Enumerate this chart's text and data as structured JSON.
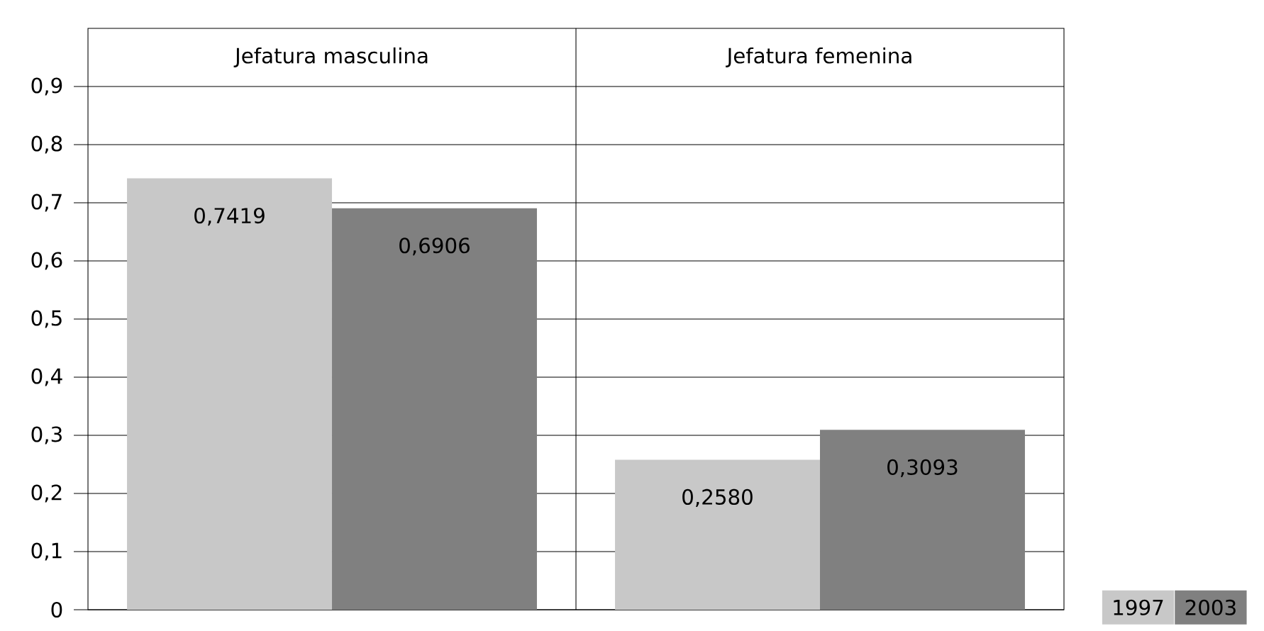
{
  "chart_data": {
    "type": "bar",
    "categories": [
      "Jefatura masculina",
      "Jefatura femenina"
    ],
    "series": [
      {
        "name": "1997",
        "color": "#c8c8c8",
        "values": [
          0.7419,
          0.258
        ],
        "value_labels": [
          "0,7419",
          "0,2580"
        ]
      },
      {
        "name": "2003",
        "color": "#808080",
        "values": [
          0.6906,
          0.3093
        ],
        "value_labels": [
          "0,6906",
          "0,3093"
        ]
      }
    ],
    "ylim": [
      0,
      1
    ],
    "yticks": [
      {
        "value": 0,
        "label": "0"
      },
      {
        "value": 0.1,
        "label": "0,1"
      },
      {
        "value": 0.2,
        "label": "0,2"
      },
      {
        "value": 0.3,
        "label": "0,3"
      },
      {
        "value": 0.4,
        "label": "0,4"
      },
      {
        "value": 0.5,
        "label": "0,5"
      },
      {
        "value": 0.6,
        "label": "0,6"
      },
      {
        "value": 0.7,
        "label": "0,7"
      },
      {
        "value": 0.8,
        "label": "0,8"
      },
      {
        "value": 0.9,
        "label": "0,9"
      }
    ],
    "grid": "y",
    "legend": "bottom right"
  }
}
